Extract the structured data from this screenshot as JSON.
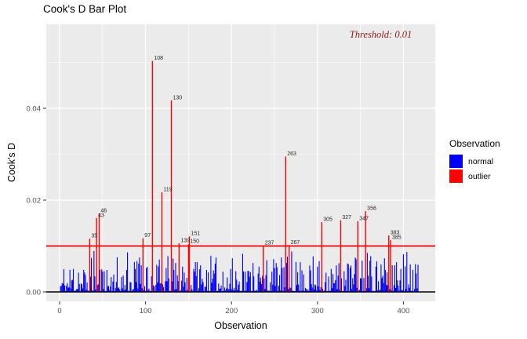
{
  "chart_data": {
    "type": "bar",
    "title": "Cook's D Bar Plot",
    "xlabel": "Observation",
    "ylabel": "Cook's D",
    "annotation": "Threshold: 0.01",
    "threshold": 0.01,
    "x_ticks": [
      0,
      100,
      200,
      300,
      400
    ],
    "x_minor_ticks": [
      50,
      150,
      250,
      350
    ],
    "y_ticks": [
      0.0,
      0.02,
      0.04
    ],
    "y_minor_ticks": [
      0.01,
      0.03,
      0.05
    ],
    "xlim": [
      -15,
      437
    ],
    "ylim": [
      -0.002,
      0.0585
    ],
    "grid": true,
    "legend": {
      "title": "Observation",
      "position": "right",
      "items": [
        {
          "label": "normal",
          "color": "#0000FF"
        },
        {
          "label": "outlier",
          "color": "#FF0000"
        }
      ]
    },
    "outliers": [
      {
        "x": 35,
        "value": 0.0116
      },
      {
        "x": 43,
        "value": 0.0161
      },
      {
        "x": 46,
        "value": 0.0171
      },
      {
        "x": 97,
        "value": 0.0117
      },
      {
        "x": 108,
        "value": 0.0503
      },
      {
        "x": 119,
        "value": 0.0217
      },
      {
        "x": 130,
        "value": 0.0417
      },
      {
        "x": 139,
        "value": 0.0106
      },
      {
        "x": 150,
        "value": 0.0104
      },
      {
        "x": 151,
        "value": 0.0121
      },
      {
        "x": 237,
        "value": 0.0101
      },
      {
        "x": 263,
        "value": 0.0295
      },
      {
        "x": 267,
        "value": 0.0102
      },
      {
        "x": 305,
        "value": 0.0152
      },
      {
        "x": 327,
        "value": 0.0156
      },
      {
        "x": 347,
        "value": 0.0154
      },
      {
        "x": 356,
        "value": 0.0176
      },
      {
        "x": 383,
        "value": 0.0123
      },
      {
        "x": 385,
        "value": 0.0113
      }
    ],
    "normal_bars": {
      "count": 417,
      "seed": 11,
      "base": 0.0002,
      "random_max": 0.0077,
      "exponent": 3,
      "notable": [
        {
          "x": 16,
          "value": 0.005
        },
        {
          "x": 22,
          "value": 0.0042
        },
        {
          "x": 40,
          "value": 0.0089
        },
        {
          "x": 52,
          "value": 0.0045
        },
        {
          "x": 63,
          "value": 0.0038
        },
        {
          "x": 79,
          "value": 0.0086
        },
        {
          "x": 90,
          "value": 0.0067
        },
        {
          "x": 93,
          "value": 0.0075
        },
        {
          "x": 95,
          "value": 0.0058
        },
        {
          "x": 101,
          "value": 0.0052
        },
        {
          "x": 113,
          "value": 0.0059
        },
        {
          "x": 124,
          "value": 0.0052
        },
        {
          "x": 133,
          "value": 0.0048
        },
        {
          "x": 143,
          "value": 0.0055
        },
        {
          "x": 145,
          "value": 0.0042
        },
        {
          "x": 156,
          "value": 0.005
        },
        {
          "x": 160,
          "value": 0.0065
        },
        {
          "x": 164,
          "value": 0.0058
        },
        {
          "x": 171,
          "value": 0.0048
        },
        {
          "x": 180,
          "value": 0.004
        },
        {
          "x": 190,
          "value": 0.0044
        },
        {
          "x": 199,
          "value": 0.005
        },
        {
          "x": 205,
          "value": 0.0045
        },
        {
          "x": 213,
          "value": 0.0083
        },
        {
          "x": 219,
          "value": 0.0046
        },
        {
          "x": 225,
          "value": 0.0063
        },
        {
          "x": 231,
          "value": 0.004
        },
        {
          "x": 241,
          "value": 0.0069
        },
        {
          "x": 247,
          "value": 0.0044
        },
        {
          "x": 252,
          "value": 0.0063
        },
        {
          "x": 259,
          "value": 0.0052
        },
        {
          "x": 270,
          "value": 0.0088
        },
        {
          "x": 277,
          "value": 0.0043
        },
        {
          "x": 284,
          "value": 0.0038
        },
        {
          "x": 292,
          "value": 0.0047
        },
        {
          "x": 300,
          "value": 0.0055
        },
        {
          "x": 310,
          "value": 0.0042
        },
        {
          "x": 316,
          "value": 0.005
        },
        {
          "x": 322,
          "value": 0.0058
        },
        {
          "x": 331,
          "value": 0.0045
        },
        {
          "x": 338,
          "value": 0.0052
        },
        {
          "x": 344,
          "value": 0.0075
        },
        {
          "x": 352,
          "value": 0.0068
        },
        {
          "x": 358,
          "value": 0.0085
        },
        {
          "x": 362,
          "value": 0.0078
        },
        {
          "x": 368,
          "value": 0.0055
        },
        {
          "x": 374,
          "value": 0.006
        },
        {
          "x": 379,
          "value": 0.0048
        },
        {
          "x": 390,
          "value": 0.0058
        },
        {
          "x": 392,
          "value": 0.0065
        },
        {
          "x": 397,
          "value": 0.005
        },
        {
          "x": 400,
          "value": 0.0082
        },
        {
          "x": 404,
          "value": 0.0087
        },
        {
          "x": 408,
          "value": 0.006
        },
        {
          "x": 411,
          "value": 0.0048
        },
        {
          "x": 415,
          "value": 0.004
        }
      ]
    }
  },
  "colors": {
    "panel_bg": "#EBEBEB",
    "grid": "#FFFFFF",
    "threshold_line": "#EE0000",
    "zero_line": "#000000",
    "annotation": "#8B1A1A",
    "tick_label": "#4D4D4D",
    "tick_mark": "#333333",
    "bar_label": "#262626",
    "normal_bar": "#0000F0",
    "outlier_bar": "#FF0000"
  }
}
